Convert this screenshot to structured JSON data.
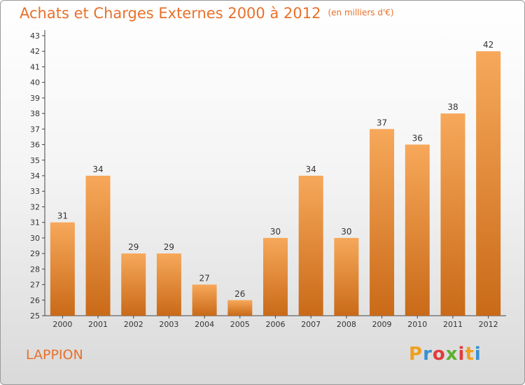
{
  "header": {
    "title": "Achats et Charges Externes 2000 à 2012",
    "subtitle": "(en milliers d'€)"
  },
  "footer": {
    "commune": "LAPPION",
    "logo": {
      "letters": [
        "P",
        "r",
        "o",
        "x",
        "i",
        "t",
        "i"
      ],
      "colors": [
        "#f0a020",
        "#3a8fd0",
        "#e03c3c",
        "#5cb030",
        "#e03c3c",
        "#f0a020",
        "#3a8fd0"
      ]
    }
  },
  "chart_data": {
    "type": "bar",
    "title": "Achats et Charges Externes 2000 à 2012",
    "subtitle": "(en milliers d'€)",
    "categories": [
      "2000",
      "2001",
      "2002",
      "2003",
      "2004",
      "2005",
      "2006",
      "2007",
      "2008",
      "2009",
      "2010",
      "2011",
      "2012"
    ],
    "values": [
      31,
      34,
      29,
      29,
      27,
      26,
      30,
      34,
      30,
      37,
      36,
      38,
      42
    ],
    "data_labels": [
      "31",
      "34",
      "29",
      "29",
      "27",
      "26",
      "30",
      "34",
      "30",
      "37",
      "36",
      "38",
      "42"
    ],
    "ylim": [
      25,
      43
    ],
    "yticks": [
      25,
      26,
      27,
      28,
      29,
      30,
      31,
      32,
      33,
      34,
      35,
      36,
      37,
      38,
      39,
      40,
      41,
      42,
      43
    ],
    "grid": false,
    "bar_color_top": "#f7a85a",
    "bar_color_bottom": "#c96a18",
    "text_color": "#333333"
  }
}
